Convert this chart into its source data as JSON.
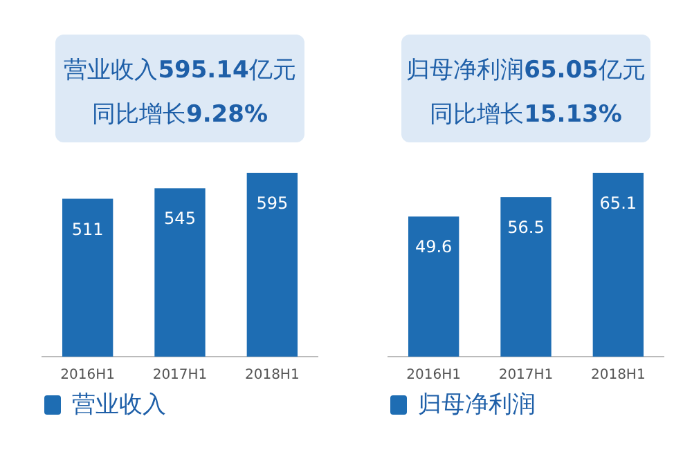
{
  "chart_data": [
    {
      "type": "bar",
      "title": "营业收入**595.14**亿元",
      "subtitle": "同比增长**9.28%**",
      "categories": [
        "2016H1",
        "2017H1",
        "2018H1"
      ],
      "series": [
        {
          "name": "营业收入",
          "color": "#1e6db3",
          "values": [
            511,
            545,
            595
          ]
        }
      ],
      "data_labels": true,
      "legend": "bottom left"
    },
    {
      "type": "bar",
      "title": "归母净利润**65.05**亿元",
      "subtitle": "同比增长**15.13%**",
      "categories": [
        "2016H1",
        "2017H1",
        "2018H1"
      ],
      "series": [
        {
          "name": "归母净利润",
          "color": "#1e6db3",
          "values": [
            49.6,
            56.5,
            65.1
          ]
        }
      ],
      "data_labels": true,
      "legend": "bottom left"
    }
  ]
}
